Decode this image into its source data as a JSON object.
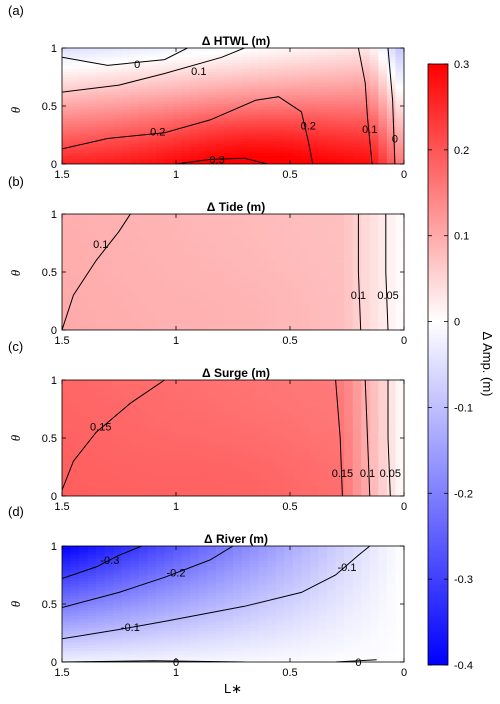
{
  "chart_data": [
    {
      "type": "heatmap",
      "panel_label": "(a)",
      "title": "Δ HTWL (m)",
      "xlabel": "",
      "ylabel": "θ",
      "xlim": [
        1.5,
        0
      ],
      "ylim": [
        0,
        1
      ],
      "x_ticks": [
        "1.5",
        "1",
        "0.5",
        "0"
      ],
      "y_ticks": [
        "0",
        "0.5",
        "1"
      ],
      "colors": {
        "c00": 0.26,
        "c10": 0.28,
        "c01": -0.05,
        "c11": 0.04,
        "bump": 0.05
      },
      "contours": [
        {
          "level": "0",
          "points": [
            [
              1.5,
              0.92
            ],
            [
              1.3,
              0.85
            ],
            [
              1.05,
              0.9
            ],
            [
              0.95,
              1.0
            ]
          ],
          "label_at": [
            1.17,
            0.86
          ]
        },
        {
          "level": "0.1",
          "points": [
            [
              1.5,
              0.62
            ],
            [
              1.25,
              0.68
            ],
            [
              1.05,
              0.78
            ],
            [
              0.8,
              0.92
            ],
            [
              0.7,
              1.0
            ]
          ],
          "label_at": [
            0.9,
            0.8
          ]
        },
        {
          "level": "0.2",
          "points": [
            [
              1.5,
              0.13
            ],
            [
              1.3,
              0.22
            ],
            [
              1.05,
              0.27
            ],
            [
              0.85,
              0.38
            ],
            [
              0.65,
              0.55
            ],
            [
              0.55,
              0.58
            ],
            [
              0.45,
              0.45
            ],
            [
              0.42,
              0.2
            ],
            [
              0.4,
              0.0
            ]
          ],
          "label_at": [
            1.08,
            0.28
          ]
        },
        {
          "level": "0.3",
          "points": [
            [
              1.0,
              0.0
            ],
            [
              0.85,
              0.04
            ],
            [
              0.7,
              0.05
            ],
            [
              0.6,
              0.0
            ]
          ],
          "label_at": [
            0.82,
            0.04
          ]
        },
        {
          "level": "0.2",
          "points": [
            [
              0.42,
              0.5
            ]
          ],
          "label_at": [
            0.42,
            0.33
          ]
        },
        {
          "level": "0.1",
          "points": [
            [
              0.2,
              1.0
            ],
            [
              0.17,
              0.7
            ],
            [
              0.16,
              0.4
            ],
            [
              0.14,
              0.0
            ]
          ],
          "label_at": [
            0.15,
            0.3
          ]
        },
        {
          "level": "0",
          "points": [
            [
              0.07,
              1.0
            ],
            [
              0.05,
              0.55
            ],
            [
              0.04,
              0.0
            ]
          ],
          "label_at": [
            0.04,
            0.22
          ]
        }
      ]
    },
    {
      "type": "heatmap",
      "panel_label": "(b)",
      "title": "Δ Tide (m)",
      "xlabel": "",
      "ylabel": "θ",
      "xlim": [
        1.5,
        0
      ],
      "ylim": [
        0,
        1
      ],
      "x_ticks": [
        "1.5",
        "1",
        "0.5",
        "0"
      ],
      "y_ticks": [
        "0",
        "0.5",
        "1"
      ],
      "colors": {
        "c00": 0.1,
        "c10": 0.07,
        "c01": 0.095,
        "c11": 0.07,
        "bump": 0.005
      },
      "contours": [
        {
          "level": "0.1",
          "points": [
            [
              1.5,
              0.0
            ],
            [
              1.45,
              0.3
            ],
            [
              1.35,
              0.6
            ],
            [
              1.25,
              0.85
            ],
            [
              1.2,
              1.0
            ]
          ],
          "label_at": [
            1.33,
            0.74
          ]
        },
        {
          "level": "0.1",
          "points": [
            [
              0.2,
              1.0
            ],
            [
              0.2,
              0.5
            ],
            [
              0.19,
              0.0
            ]
          ],
          "label_at": [
            0.2,
            0.3
          ]
        },
        {
          "level": "0.05",
          "points": [
            [
              0.08,
              1.0
            ],
            [
              0.08,
              0.5
            ],
            [
              0.07,
              0.0
            ]
          ],
          "label_at": [
            0.07,
            0.3
          ]
        }
      ]
    },
    {
      "type": "heatmap",
      "panel_label": "(c)",
      "title": "Δ Surge (m)",
      "xlabel": "",
      "ylabel": "θ",
      "xlim": [
        1.5,
        0
      ],
      "ylim": [
        0,
        1
      ],
      "x_ticks": [
        "1.5",
        "1",
        "0.5",
        "0"
      ],
      "y_ticks": [
        "0",
        "0.5",
        "1"
      ],
      "colors": {
        "c00": 0.19,
        "c10": 0.16,
        "c01": 0.18,
        "c11": 0.15,
        "bump": 0.01
      },
      "contours": [
        {
          "level": "0.15",
          "points": [
            [
              1.5,
              0.05
            ],
            [
              1.45,
              0.3
            ],
            [
              1.35,
              0.55
            ],
            [
              1.2,
              0.8
            ],
            [
              1.05,
              1.0
            ]
          ],
          "label_at": [
            1.33,
            0.6
          ]
        },
        {
          "level": "0.15",
          "points": [
            [
              0.3,
              1.0
            ],
            [
              0.28,
              0.5
            ],
            [
              0.27,
              0.0
            ]
          ],
          "label_at": [
            0.27,
            0.2
          ]
        },
        {
          "level": "0.1",
          "points": [
            [
              0.17,
              1.0
            ],
            [
              0.16,
              0.5
            ],
            [
              0.15,
              0.0
            ]
          ],
          "label_at": [
            0.16,
            0.2
          ]
        },
        {
          "level": "0.05",
          "points": [
            [
              0.07,
              1.0
            ],
            [
              0.07,
              0.5
            ],
            [
              0.06,
              0.0
            ]
          ],
          "label_at": [
            0.06,
            0.2
          ]
        }
      ]
    },
    {
      "type": "heatmap",
      "panel_label": "(d)",
      "title": "Δ River (m)",
      "xlabel": "L∗",
      "ylabel": "θ",
      "xlim": [
        1.5,
        0
      ],
      "ylim": [
        0,
        1
      ],
      "x_ticks": [
        "1.5",
        "1",
        "0.5",
        "0"
      ],
      "y_ticks": [
        "0",
        "0.5",
        "1"
      ],
      "colors": {
        "c00": -0.02,
        "c10": 0.0,
        "c01": -0.4,
        "c11": 0.0,
        "bump": 0.0
      },
      "contours": [
        {
          "level": "-0.3",
          "points": [
            [
              1.5,
              0.72
            ],
            [
              1.35,
              0.82
            ],
            [
              1.25,
              0.92
            ],
            [
              1.15,
              1.0
            ]
          ],
          "label_at": [
            1.29,
            0.88
          ]
        },
        {
          "level": "-0.2",
          "points": [
            [
              1.5,
              0.47
            ],
            [
              1.25,
              0.6
            ],
            [
              1.05,
              0.73
            ],
            [
              0.85,
              0.88
            ],
            [
              0.75,
              1.0
            ]
          ],
          "label_at": [
            1.0,
            0.77
          ]
        },
        {
          "level": "-0.1",
          "points": [
            [
              1.5,
              0.2
            ],
            [
              1.25,
              0.28
            ],
            [
              1.05,
              0.35
            ],
            [
              0.7,
              0.48
            ],
            [
              0.45,
              0.6
            ],
            [
              0.3,
              0.75
            ],
            [
              0.2,
              0.92
            ],
            [
              0.15,
              1.0
            ]
          ],
          "label_at": [
            1.2,
            0.3
          ]
        },
        {
          "level": "-0.1",
          "points": [
            [
              0.25,
              0.82
            ]
          ],
          "label_at": [
            0.25,
            0.82
          ]
        },
        {
          "level": "0",
          "points": [
            [
              1.5,
              0.0
            ],
            [
              1.1,
              0.01
            ],
            [
              0.7,
              0.0
            ]
          ],
          "label_at": [
            1.0,
            0.0
          ]
        },
        {
          "level": "0",
          "points": [
            [
              0.3,
              0.0
            ],
            [
              0.12,
              0.02
            ]
          ],
          "label_at": [
            0.2,
            0.0
          ]
        }
      ]
    }
  ],
  "colorbar": {
    "label": "Δ Amp. (m)",
    "min": -0.4,
    "max": 0.3,
    "ticks": [
      "0.3",
      "0.2",
      "0.1",
      "0",
      "-0.1",
      "-0.2",
      "-0.3",
      "-0.4"
    ],
    "tick_values": [
      0.3,
      0.2,
      0.1,
      0,
      -0.1,
      -0.2,
      -0.3,
      -0.4
    ]
  }
}
